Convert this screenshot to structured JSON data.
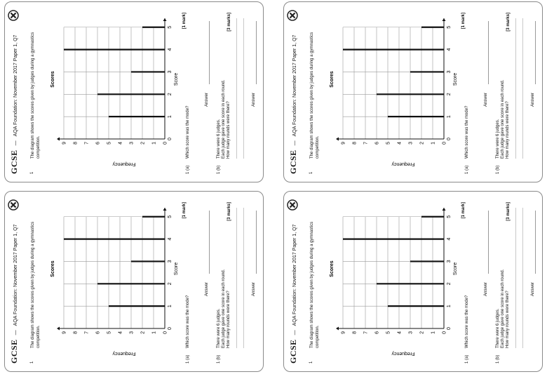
{
  "header": {
    "logo_text": "GCSE",
    "title": "AQA Foundation: November 2017 Paper 1, Q7"
  },
  "question": {
    "number": "1",
    "intro": "The diagram shows the scores given by judges during a gymnastics competition."
  },
  "chart_data": {
    "type": "bar",
    "orientation": "vertical-line",
    "title": "Scores",
    "xlabel": "Score",
    "ylabel": "Frequency",
    "categories": [
      "0",
      "1",
      "2",
      "3",
      "4",
      "5"
    ],
    "values": [
      0,
      5,
      6,
      3,
      9,
      2
    ],
    "x_ticks": [
      "0",
      "1",
      "2",
      "3",
      "4",
      "5"
    ],
    "y_ticks": [
      "0",
      "1",
      "2",
      "3",
      "4",
      "5",
      "6",
      "7",
      "8",
      "9"
    ],
    "ylim": [
      0,
      9
    ]
  },
  "part_a": {
    "label": "1 (a)",
    "text": "Which score was the mode?",
    "marks": "[1 mark]",
    "answer_label": "Answer"
  },
  "part_b": {
    "label": "1 (b)",
    "line1": "There were 6 judges.",
    "line2": "Each judge gave one score in each round.",
    "line3": "How many rounds were there?",
    "marks": "[3 marks]",
    "answer_label": "Answer"
  },
  "colors": {
    "border": "#8a8a8a",
    "bar": "#111111",
    "grid": "#9a9a9a"
  }
}
